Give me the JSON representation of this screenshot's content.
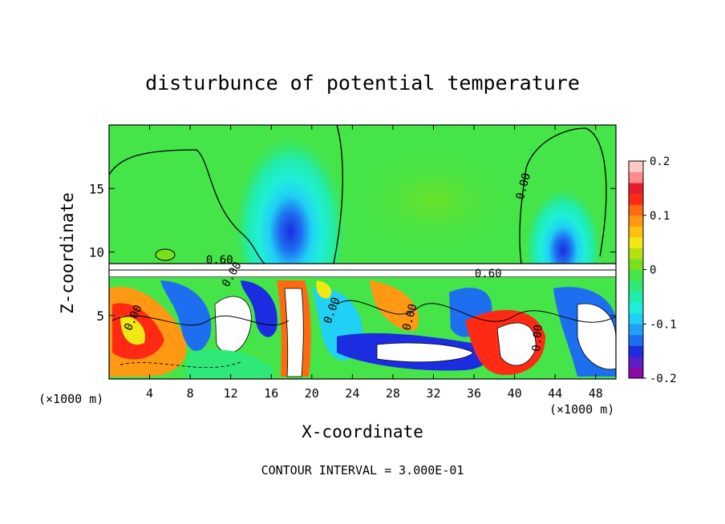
{
  "chart_data": {
    "type": "heatmap",
    "title": "disturbunce of potential temperature",
    "xlabel": "X-coordinate",
    "ylabel": "Z-coordinate",
    "x_unit_note_left": "(×1000 m)",
    "x_unit_note_right": "(×1000 m)",
    "xlim": [
      0,
      50
    ],
    "ylim": [
      0,
      20
    ],
    "x_ticks": [
      4,
      8,
      12,
      16,
      20,
      24,
      28,
      32,
      36,
      40,
      44,
      48
    ],
    "x_tick_labels": [
      "4",
      "8",
      "12",
      "16",
      "20",
      "24",
      "28",
      "32",
      "36",
      "40",
      "44",
      "48"
    ],
    "y_ticks": [
      5,
      10,
      15
    ],
    "y_tick_labels": [
      "5",
      "10",
      "15"
    ],
    "colorbar": {
      "range": [
        -0.2,
        0.2
      ],
      "ticks": [
        0.2,
        0.1,
        0,
        -0.1,
        -0.2
      ],
      "tick_labels": [
        "0.2",
        "0.1",
        "0",
        "-0.1",
        "-0.2"
      ],
      "colors": [
        "#8b0aa5",
        "#5a1fc8",
        "#1c2ce0",
        "#1e6ef0",
        "#1fa0f5",
        "#20d0f5",
        "#20eed8",
        "#22ecaa",
        "#2ee878",
        "#45e448",
        "#7ae01c",
        "#b6e012",
        "#f0e812",
        "#ffc012",
        "#ff9812",
        "#ff6a10",
        "#ff2a14",
        "#e81c30",
        "#ff8c8c",
        "#ffc8c8"
      ]
    },
    "contour_labels": [
      {
        "text": "0.00",
        "x": 41.2,
        "z": 15.1,
        "rotate": -75
      },
      {
        "text": "0.60",
        "x": 10.9,
        "z": 9.1,
        "rotate": 0
      },
      {
        "text": "0.60",
        "x": 37.4,
        "z": 8.0,
        "rotate": 0
      },
      {
        "text": "0.00",
        "x": 12.4,
        "z": 8.1,
        "rotate": -60
      },
      {
        "text": "0.00",
        "x": 2.7,
        "z": 4.7,
        "rotate": -65
      },
      {
        "text": "0.00",
        "x": 22.3,
        "z": 5.3,
        "rotate": -70
      },
      {
        "text": "0.00",
        "x": 30.0,
        "z": 4.8,
        "rotate": -75
      },
      {
        "text": "0.00",
        "x": 42.6,
        "z": 3.2,
        "rotate": -85
      }
    ],
    "contour_interval_text": "CONTOUR INTERVAL = 3.000E-01"
  }
}
